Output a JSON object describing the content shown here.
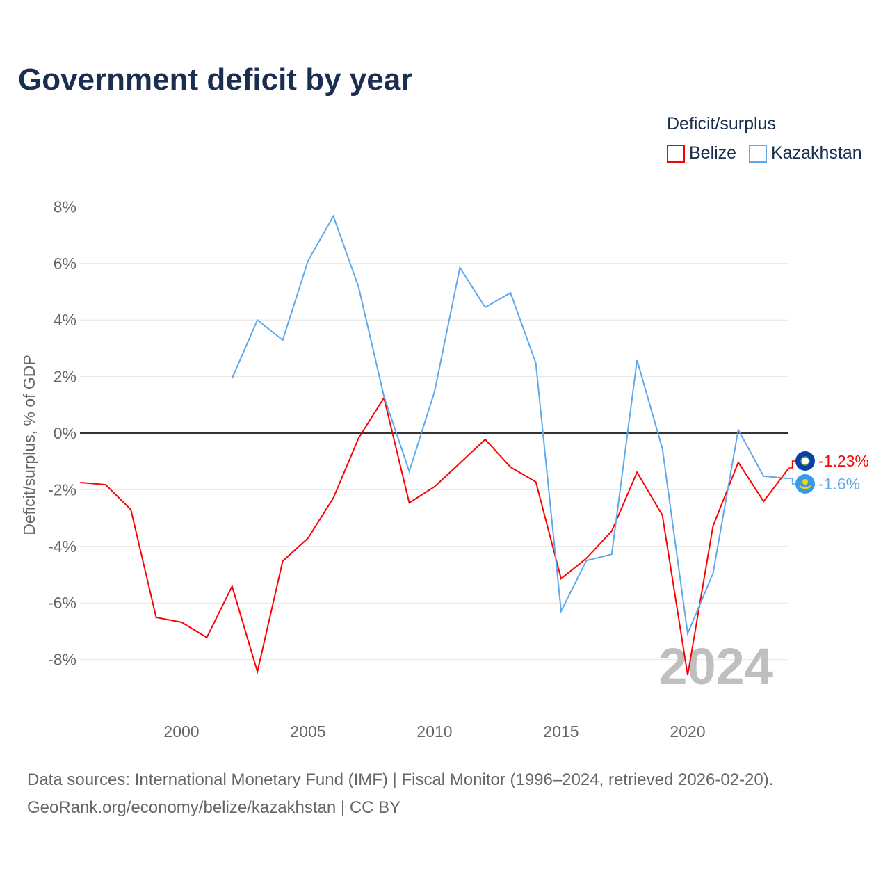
{
  "title": "Government deficit by year",
  "legend": {
    "title": "Deficit/surplus",
    "items": [
      {
        "name": "Belize",
        "color": "#ff0000"
      },
      {
        "name": "Kazakhstan",
        "color": "#5ea8ec"
      }
    ]
  },
  "footer": {
    "line1": "Data sources: International Monetary Fund (IMF) | Fiscal Monitor (1996–2024, retrieved 2026-02-20).",
    "line2": "GeoRank.org/economy/belize/kazakhstan | CC BY"
  },
  "chart_data": {
    "type": "line",
    "title": "Government deficit by year",
    "ylabel": "Deficit/surplus, % of GDP",
    "xlim": [
      1996,
      2024
    ],
    "ylim": [
      -9.5,
      8.5
    ],
    "yticks": [
      8,
      6,
      4,
      2,
      0,
      -2,
      -4,
      -6,
      -8
    ],
    "ytick_labels": [
      "8%",
      "6%",
      "4%",
      "2%",
      "0%",
      "-2%",
      "-4%",
      "-6%",
      "-8%"
    ],
    "xticks": [
      2000,
      2005,
      2010,
      2015,
      2020
    ],
    "xtick_labels": [
      "2000",
      "2005",
      "2010",
      "2015",
      "2020"
    ],
    "watermark_year": "2024",
    "series": [
      {
        "name": "Belize",
        "color": "#ff0000",
        "end_label": "-1.23%",
        "x": [
          1996,
          1997,
          1998,
          1999,
          2000,
          2001,
          2002,
          2003,
          2004,
          2005,
          2006,
          2007,
          2008,
          2009,
          2010,
          2011,
          2012,
          2013,
          2014,
          2015,
          2016,
          2017,
          2018,
          2019,
          2020,
          2021,
          2022,
          2023,
          2024
        ],
        "values": [
          -1.74,
          -1.82,
          -2.7,
          -6.51,
          -6.68,
          -7.22,
          -5.41,
          -8.43,
          -4.52,
          -3.71,
          -2.29,
          -0.17,
          1.25,
          -2.46,
          -1.89,
          -1.06,
          -0.22,
          -1.2,
          -1.72,
          -5.14,
          -4.42,
          -3.46,
          -1.38,
          -2.9,
          -8.55,
          -3.29,
          -1.03,
          -2.41,
          -1.23
        ]
      },
      {
        "name": "Kazakhstan",
        "color": "#5ea8ec",
        "end_label": "-1.6%",
        "x": [
          2002,
          2003,
          2004,
          2005,
          2006,
          2007,
          2008,
          2009,
          2010,
          2011,
          2012,
          2013,
          2014,
          2015,
          2016,
          2017,
          2018,
          2019,
          2020,
          2021,
          2022,
          2023,
          2024
        ],
        "values": [
          1.94,
          4.0,
          3.29,
          6.09,
          7.67,
          5.16,
          1.3,
          -1.35,
          1.47,
          5.85,
          4.45,
          4.96,
          2.48,
          -6.29,
          -4.5,
          -4.28,
          2.58,
          -0.54,
          -7.08,
          -4.96,
          0.12,
          -1.52,
          -1.6
        ]
      }
    ]
  }
}
